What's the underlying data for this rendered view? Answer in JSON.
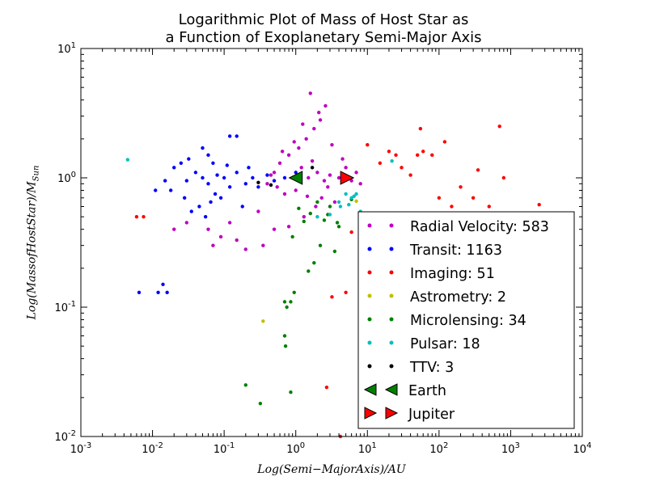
{
  "chart_data": {
    "type": "scatter",
    "title_line1": "Logarithmic Plot of Mass of Host Star as",
    "title_line2": "a Function of Exoplanetary Semi-Major Axis",
    "xlabel": "Log(Semi−MajorAxis)/AU",
    "ylabel": "Log(MassofHostStar)/M_Sun",
    "ylabel_main": "Log(MassofHostStar)/M",
    "ylabel_sub": "Sun",
    "xscale": "log",
    "yscale": "log",
    "xlim": [
      0.001,
      10000
    ],
    "ylim": [
      0.01,
      10
    ],
    "x_ticks": [
      {
        "value": 0.001,
        "base": "10",
        "exp": "-3"
      },
      {
        "value": 0.01,
        "base": "10",
        "exp": "-2"
      },
      {
        "value": 0.1,
        "base": "10",
        "exp": "-1"
      },
      {
        "value": 1,
        "base": "10",
        "exp": "0"
      },
      {
        "value": 10,
        "base": "10",
        "exp": "1"
      },
      {
        "value": 100,
        "base": "10",
        "exp": "2"
      },
      {
        "value": 1000,
        "base": "10",
        "exp": "3"
      },
      {
        "value": 10000,
        "base": "10",
        "exp": "4"
      }
    ],
    "y_ticks": [
      {
        "value": 0.01,
        "base": "10",
        "exp": "-2"
      },
      {
        "value": 0.1,
        "base": "10",
        "exp": "-1"
      },
      {
        "value": 1,
        "base": "10",
        "exp": "0"
      },
      {
        "value": 10,
        "base": "10",
        "exp": "1"
      }
    ],
    "legend_position": "lower-right",
    "grid": false,
    "series": [
      {
        "name": "Radial Velocity: 583",
        "color": "#bf00bf",
        "marker": "dot",
        "points": [
          [
            0.9,
            1.0
          ],
          [
            1.2,
            1.2
          ],
          [
            1.5,
            1.0
          ],
          [
            2.0,
            1.1
          ],
          [
            1.7,
            1.35
          ],
          [
            2.5,
            0.95
          ],
          [
            3.0,
            1.05
          ],
          [
            4.0,
            1.0
          ],
          [
            0.5,
            1.1
          ],
          [
            0.6,
            1.3
          ],
          [
            0.8,
            1.5
          ],
          [
            1.1,
            1.7
          ],
          [
            1.4,
            2.0
          ],
          [
            1.8,
            2.4
          ],
          [
            2.2,
            2.8
          ],
          [
            1.6,
            4.5
          ],
          [
            2.6,
            3.6
          ],
          [
            0.3,
            0.55
          ],
          [
            0.4,
            0.9
          ],
          [
            0.7,
            0.75
          ],
          [
            1.0,
            0.8
          ],
          [
            2.8,
            0.85
          ],
          [
            5.0,
            1.2
          ],
          [
            6.0,
            0.95
          ],
          [
            3.5,
            0.65
          ],
          [
            0.35,
            0.3
          ],
          [
            0.5,
            0.4
          ],
          [
            0.2,
            0.28
          ],
          [
            0.07,
            0.3
          ],
          [
            0.06,
            0.4
          ],
          [
            0.03,
            0.45
          ],
          [
            0.02,
            0.4
          ],
          [
            0.15,
            0.33
          ],
          [
            0.12,
            0.45
          ],
          [
            0.09,
            0.35
          ],
          [
            0.8,
            0.42
          ],
          [
            1.3,
            0.5
          ],
          [
            1.9,
            0.6
          ],
          [
            2.3,
            0.7
          ],
          [
            4.5,
            1.4
          ],
          [
            3.2,
            1.8
          ],
          [
            0.95,
            1.9
          ],
          [
            0.65,
            1.6
          ],
          [
            1.25,
            2.6
          ],
          [
            2.1,
            3.2
          ],
          [
            7.0,
            1.1
          ],
          [
            8.0,
            0.9
          ],
          [
            0.45,
            1.05
          ],
          [
            0.55,
            0.85
          ],
          [
            1.45,
            0.72
          ]
        ]
      },
      {
        "name": "Transit: 1163",
        "color": "#0000ff",
        "marker": "dot",
        "points": [
          [
            0.05,
            1.0
          ],
          [
            0.06,
            0.9
          ],
          [
            0.04,
            1.1
          ],
          [
            0.03,
            0.95
          ],
          [
            0.08,
            1.05
          ],
          [
            0.1,
            1.0
          ],
          [
            0.12,
            0.85
          ],
          [
            0.02,
            1.2
          ],
          [
            0.07,
            1.3
          ],
          [
            0.09,
            0.7
          ],
          [
            0.045,
            0.6
          ],
          [
            0.035,
            0.55
          ],
          [
            0.15,
            1.1
          ],
          [
            0.2,
            0.9
          ],
          [
            0.25,
            1.0
          ],
          [
            0.3,
            0.85
          ],
          [
            0.4,
            1.05
          ],
          [
            0.5,
            0.95
          ],
          [
            0.018,
            0.8
          ],
          [
            0.015,
            0.95
          ],
          [
            0.06,
            1.5
          ],
          [
            0.05,
            1.7
          ],
          [
            0.12,
            2.1
          ],
          [
            0.15,
            2.1
          ],
          [
            0.011,
            0.8
          ],
          [
            0.0065,
            0.13
          ],
          [
            0.012,
            0.13
          ],
          [
            0.014,
            0.15
          ],
          [
            0.016,
            0.13
          ],
          [
            0.7,
            1.0
          ],
          [
            1.0,
            1.1
          ],
          [
            0.055,
            0.5
          ],
          [
            0.065,
            0.65
          ],
          [
            0.11,
            1.25
          ],
          [
            0.075,
            0.75
          ],
          [
            0.025,
            1.3
          ],
          [
            0.028,
            0.7
          ],
          [
            0.032,
            1.4
          ],
          [
            0.18,
            0.6
          ],
          [
            0.22,
            1.2
          ]
        ]
      },
      {
        "name": "Imaging: 51",
        "color": "#ff0000",
        "marker": "dot",
        "points": [
          [
            0.006,
            0.5
          ],
          [
            0.0075,
            0.5
          ],
          [
            10,
            1.8
          ],
          [
            20,
            1.6
          ],
          [
            25,
            1.5
          ],
          [
            30,
            1.2
          ],
          [
            50,
            1.5
          ],
          [
            55,
            2.4
          ],
          [
            60,
            1.6
          ],
          [
            80,
            1.5
          ],
          [
            120,
            1.9
          ],
          [
            100,
            0.7
          ],
          [
            150,
            0.6
          ],
          [
            200,
            0.85
          ],
          [
            300,
            0.7
          ],
          [
            350,
            1.15
          ],
          [
            500,
            0.6
          ],
          [
            700,
            2.5
          ],
          [
            800,
            1.0
          ],
          [
            1200,
            0.4
          ],
          [
            2500,
            0.62
          ],
          [
            5,
            0.13
          ],
          [
            3.2,
            0.12
          ],
          [
            2.7,
            0.024
          ],
          [
            6,
            0.38
          ],
          [
            8,
            0.03
          ],
          [
            40,
            1.05
          ],
          [
            15,
            1.3
          ],
          [
            250,
            0.5
          ],
          [
            4.2,
            0.01
          ]
        ]
      },
      {
        "name": "Astrometry: 2",
        "color": "#bfbf00",
        "marker": "dot",
        "points": [
          [
            0.35,
            0.078
          ],
          [
            7,
            0.66
          ]
        ]
      },
      {
        "name": "Microlensing: 34",
        "color": "#008000",
        "marker": "dot",
        "points": [
          [
            0.7,
            0.11
          ],
          [
            0.75,
            0.1
          ],
          [
            0.85,
            0.11
          ],
          [
            0.95,
            0.13
          ],
          [
            0.7,
            0.06
          ],
          [
            0.72,
            0.05
          ],
          [
            0.2,
            0.025
          ],
          [
            0.32,
            0.018
          ],
          [
            0.85,
            0.022
          ],
          [
            1.5,
            0.19
          ],
          [
            1.8,
            0.22
          ],
          [
            2.2,
            0.3
          ],
          [
            2.5,
            0.47
          ],
          [
            3,
            0.6
          ],
          [
            3.5,
            0.27
          ],
          [
            4,
            0.42
          ],
          [
            2,
            0.65
          ],
          [
            1.3,
            0.46
          ],
          [
            0.9,
            0.35
          ],
          [
            1.6,
            0.53
          ],
          [
            3.8,
            0.45
          ],
          [
            6,
            0.68
          ],
          [
            2.8,
            0.52
          ],
          [
            1.1,
            0.58
          ]
        ]
      },
      {
        "name": "Pulsar: 18",
        "color": "#00bfbf",
        "marker": "dot",
        "points": [
          [
            0.0045,
            1.38
          ],
          [
            2,
            0.5
          ],
          [
            4,
            0.65
          ],
          [
            4.2,
            0.6
          ],
          [
            5,
            0.75
          ],
          [
            6,
            0.7
          ],
          [
            7,
            0.75
          ],
          [
            22,
            1.35
          ],
          [
            8,
            0.55
          ],
          [
            3,
            0.52
          ],
          [
            5.5,
            0.62
          ],
          [
            6.5,
            0.72
          ]
        ]
      },
      {
        "name": "TTV: 3",
        "color": "#000000",
        "marker": "dot",
        "points": [
          [
            0.3,
            0.92
          ],
          [
            1.7,
            1.2
          ],
          [
            0.45,
            0.88
          ]
        ]
      },
      {
        "name": "Earth",
        "color": "#008000",
        "marker": "triangle-left",
        "points": [
          [
            1,
            1
          ]
        ]
      },
      {
        "name": "Jupiter",
        "color": "#ff0000",
        "marker": "triangle-right",
        "points": [
          [
            5.2,
            1
          ]
        ]
      }
    ]
  }
}
